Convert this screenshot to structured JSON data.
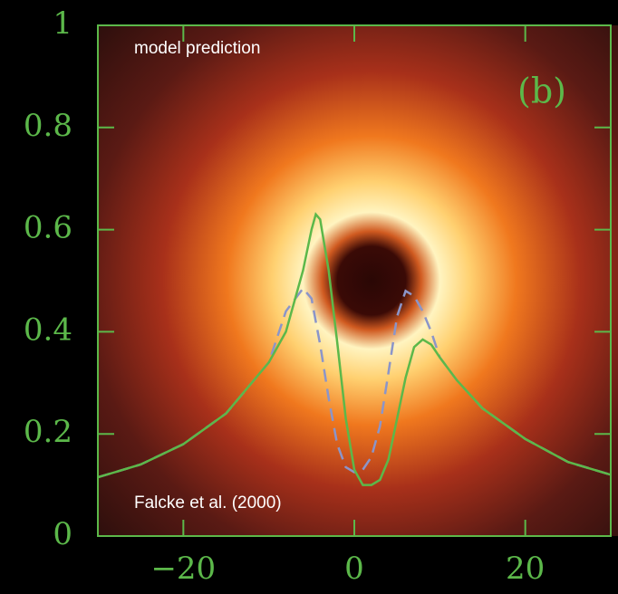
{
  "chart_data": {
    "type": "line",
    "annotations": [
      "model prediction",
      "Falcke et al. (2000)",
      "(b)"
    ],
    "x": [
      -30,
      -25,
      -20,
      -15,
      -10,
      -8,
      -6,
      -5,
      -4.5,
      -4,
      -3,
      -2,
      -1,
      0,
      1,
      2,
      3,
      4,
      5,
      6,
      7,
      8,
      9,
      10,
      12,
      15,
      20,
      25,
      30
    ],
    "series": [
      {
        "color": "#5cb84a",
        "dash": false,
        "values": [
          0.115,
          0.14,
          0.18,
          0.24,
          0.34,
          0.4,
          0.52,
          0.6,
          0.63,
          0.62,
          0.52,
          0.38,
          0.23,
          0.13,
          0.1,
          0.1,
          0.11,
          0.15,
          0.23,
          0.31,
          0.37,
          0.385,
          0.375,
          0.35,
          0.305,
          0.25,
          0.19,
          0.145,
          0.12
        ]
      },
      {
        "color": "#8b95c9",
        "dash": true,
        "values": [
          0.115,
          0.14,
          0.18,
          0.24,
          0.34,
          0.44,
          0.485,
          0.465,
          0.42,
          0.375,
          0.27,
          0.18,
          0.135,
          0.125,
          0.13,
          0.155,
          0.215,
          0.32,
          0.43,
          0.48,
          0.47,
          0.44,
          0.4,
          0.35,
          0.305,
          0.25,
          0.19,
          0.145,
          0.12
        ]
      }
    ],
    "xlim": [
      -30,
      30
    ],
    "ylim": [
      0,
      1
    ],
    "xticks": [
      {
        "value": -20,
        "label": "−20"
      },
      0,
      20
    ],
    "yticks": [
      0,
      0.2,
      0.4,
      0.6,
      0.8,
      1
    ]
  }
}
